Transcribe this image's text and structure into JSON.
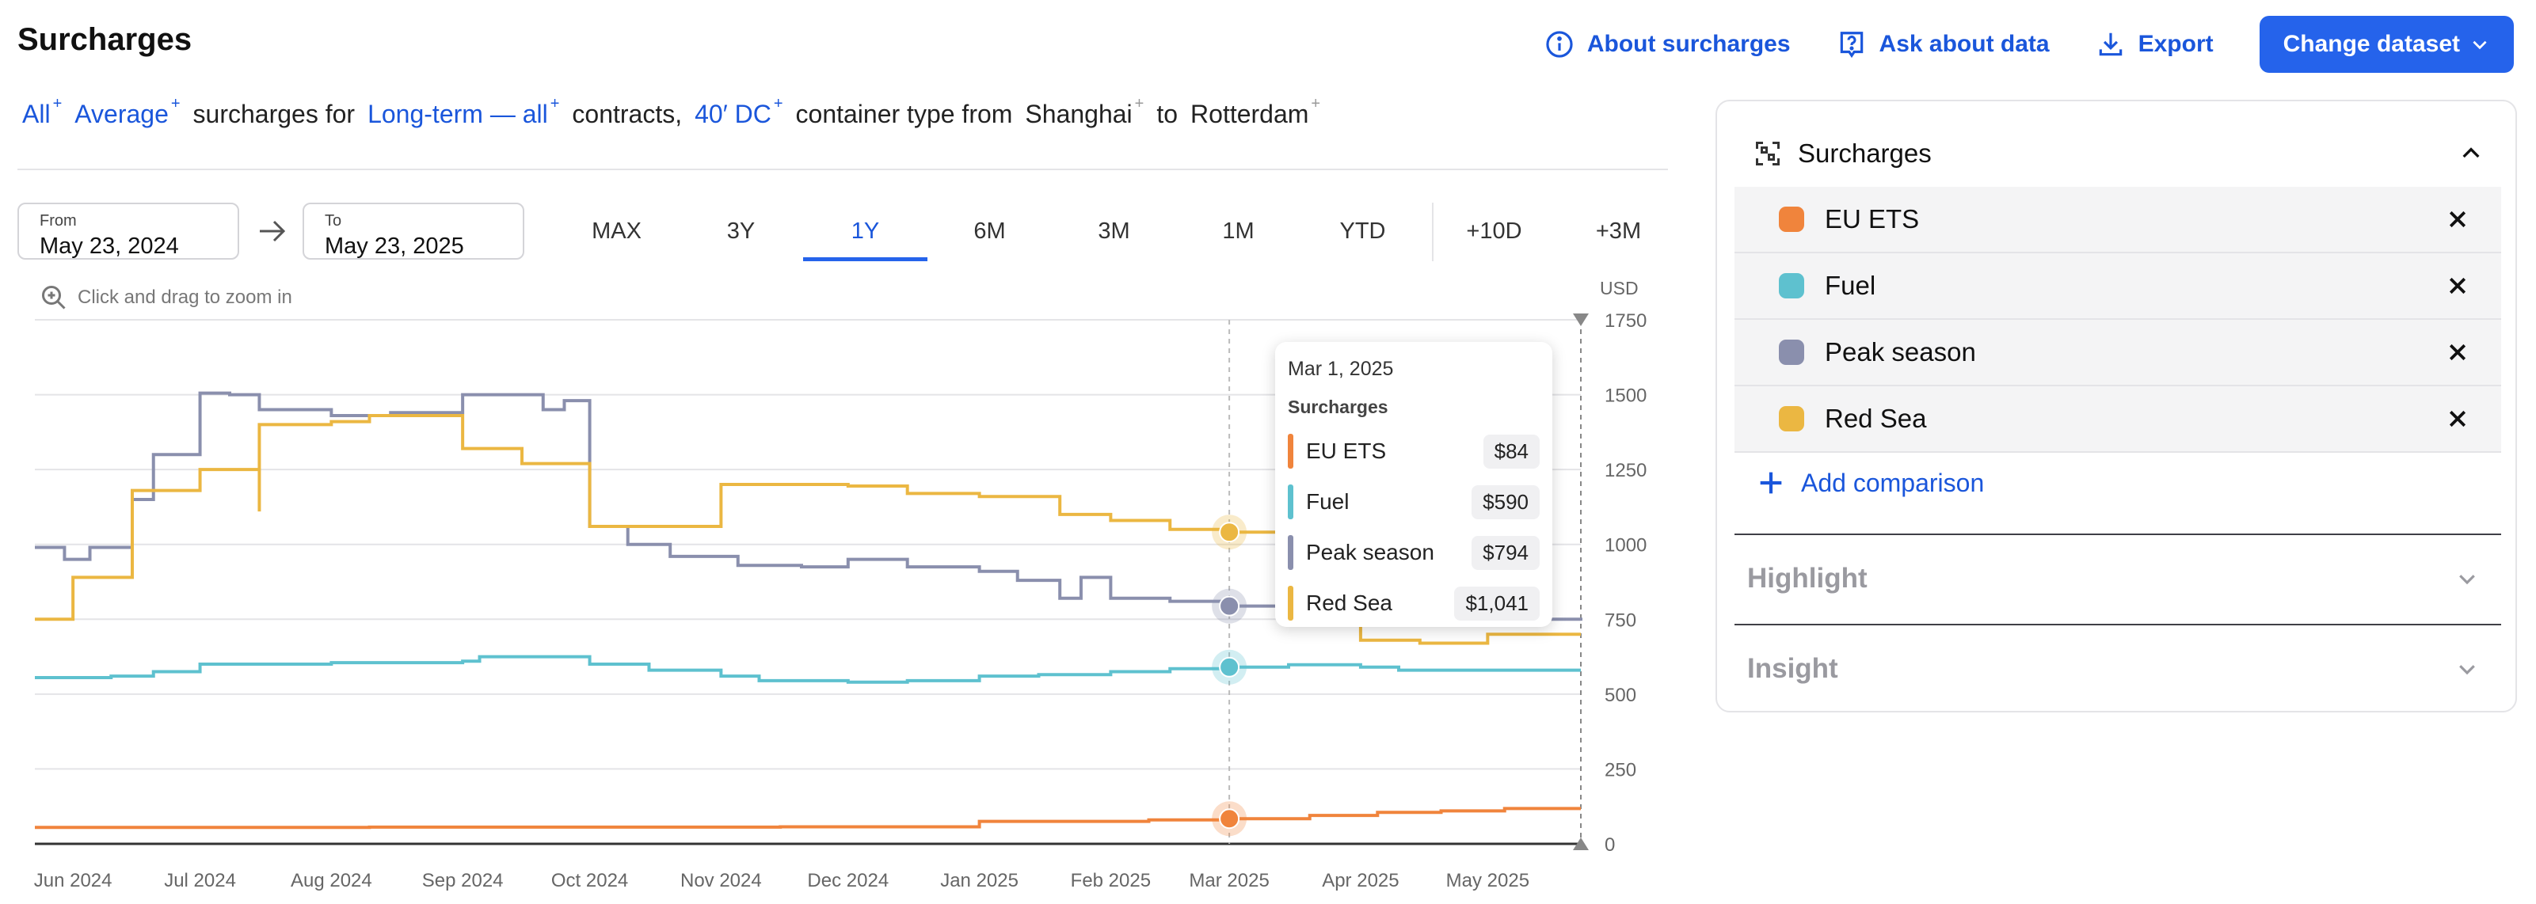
{
  "header": {
    "title": "Surcharges",
    "about_label": "About surcharges",
    "ask_label": "Ask about data",
    "export_label": "Export",
    "change_dataset_label": "Change dataset"
  },
  "query": {
    "all": "All",
    "average": "Average",
    "t1": "surcharges for",
    "contract": "Long-term — all",
    "t2": "contracts,",
    "container": "40′ DC",
    "t3": "container type from",
    "origin": "Shanghai",
    "t4": "to",
    "destination": "Rotterdam",
    "sup_mark": "+"
  },
  "date_range": {
    "from_label": "From",
    "from_value": "May 23, 2024",
    "to_label": "To",
    "to_value": "May 23, 2025"
  },
  "ranges": [
    "MAX",
    "3Y",
    "1Y",
    "6M",
    "3M",
    "1M",
    "YTD"
  ],
  "active_range": "1Y",
  "ranges_future": [
    "+10D",
    "+3M"
  ],
  "zoom_hint": "Click and drag to zoom in",
  "colors": {
    "eu_ets": "#f0843c",
    "fuel": "#5ec1cf",
    "peak": "#8a8fad",
    "red_sea": "#ebb742",
    "accent": "#2563eb"
  },
  "tooltip": {
    "date": "Mar 1, 2025",
    "heading": "Surcharges",
    "rows": [
      {
        "name": "EU ETS",
        "value": "$84"
      },
      {
        "name": "Fuel",
        "value": "$590"
      },
      {
        "name": "Peak season",
        "value": "$794"
      },
      {
        "name": "Red Sea",
        "value": "$1,041"
      }
    ]
  },
  "panel": {
    "title": "Surcharges",
    "items": [
      "EU ETS",
      "Fuel",
      "Peak season",
      "Red Sea"
    ],
    "add_label": "Add comparison",
    "highlight_label": "Highlight",
    "insight_label": "Insight"
  },
  "chart_data": {
    "type": "line",
    "step": true,
    "ylabel": "USD",
    "ylim": [
      0,
      1750
    ],
    "yticks": [
      0,
      250,
      500,
      750,
      1000,
      1250,
      1500,
      1750
    ],
    "xlim": [
      "2024-05-23",
      "2025-05-23"
    ],
    "xticks": [
      {
        "label": "Jun 2024",
        "date": "2024-06-01"
      },
      {
        "label": "Jul 2024",
        "date": "2024-07-01"
      },
      {
        "label": "Aug 2024",
        "date": "2024-08-01"
      },
      {
        "label": "Sep 2024",
        "date": "2024-09-01"
      },
      {
        "label": "Oct 2024",
        "date": "2024-10-01"
      },
      {
        "label": "Nov 2024",
        "date": "2024-11-01"
      },
      {
        "label": "Dec 2024",
        "date": "2024-12-01"
      },
      {
        "label": "Jan 2025",
        "date": "2025-01-01"
      },
      {
        "label": "Feb 2025",
        "date": "2025-02-01"
      },
      {
        "label": "Mar 2025",
        "date": "2025-03-01"
      },
      {
        "label": "Apr 2025",
        "date": "2025-04-01"
      },
      {
        "label": "May 2025",
        "date": "2025-05-01"
      }
    ],
    "grid": true,
    "cursor_date": "2025-03-01",
    "series": [
      {
        "name": "EU ETS",
        "color": "#f0843c",
        "points": [
          [
            "2024-05-23",
            55
          ],
          [
            "2024-08-10",
            56
          ],
          [
            "2024-11-15",
            57
          ],
          [
            "2025-01-01",
            75
          ],
          [
            "2025-02-10",
            80
          ],
          [
            "2025-03-01",
            84
          ],
          [
            "2025-03-20",
            95
          ],
          [
            "2025-04-05",
            105
          ],
          [
            "2025-04-20",
            110
          ],
          [
            "2025-05-05",
            118
          ],
          [
            "2025-05-23",
            118
          ]
        ]
      },
      {
        "name": "Fuel",
        "color": "#5ec1cf",
        "points": [
          [
            "2024-05-23",
            555
          ],
          [
            "2024-06-10",
            560
          ],
          [
            "2024-06-20",
            575
          ],
          [
            "2024-07-01",
            600
          ],
          [
            "2024-08-01",
            605
          ],
          [
            "2024-09-01",
            610
          ],
          [
            "2024-09-05",
            625
          ],
          [
            "2024-10-01",
            600
          ],
          [
            "2024-10-15",
            580
          ],
          [
            "2024-11-01",
            560
          ],
          [
            "2024-11-10",
            545
          ],
          [
            "2024-12-01",
            540
          ],
          [
            "2024-12-15",
            545
          ],
          [
            "2025-01-01",
            560
          ],
          [
            "2025-01-15",
            565
          ],
          [
            "2025-02-01",
            575
          ],
          [
            "2025-02-15",
            585
          ],
          [
            "2025-03-01",
            590
          ],
          [
            "2025-03-15",
            598
          ],
          [
            "2025-04-01",
            590
          ],
          [
            "2025-04-10",
            580
          ],
          [
            "2025-05-23",
            580
          ]
        ]
      },
      {
        "name": "Peak season",
        "color": "#8a8fad",
        "points": [
          [
            "2024-05-23",
            990
          ],
          [
            "2024-05-30",
            950
          ],
          [
            "2024-06-05",
            990
          ],
          [
            "2024-06-15",
            1150
          ],
          [
            "2024-06-20",
            1300
          ],
          [
            "2024-07-01",
            1505
          ],
          [
            "2024-07-08",
            1500
          ],
          [
            "2024-07-15",
            1450
          ],
          [
            "2024-08-01",
            1430
          ],
          [
            "2024-08-15",
            1440
          ],
          [
            "2024-09-01",
            1500
          ],
          [
            "2024-09-20",
            1450
          ],
          [
            "2024-09-25",
            1480
          ],
          [
            "2024-10-01",
            1060
          ],
          [
            "2024-10-10",
            1000
          ],
          [
            "2024-10-20",
            960
          ],
          [
            "2024-11-05",
            930
          ],
          [
            "2024-11-20",
            925
          ],
          [
            "2024-12-01",
            950
          ],
          [
            "2024-12-15",
            925
          ],
          [
            "2025-01-01",
            910
          ],
          [
            "2025-01-10",
            880
          ],
          [
            "2025-01-20",
            820
          ],
          [
            "2025-01-25",
            890
          ],
          [
            "2025-02-01",
            820
          ],
          [
            "2025-02-15",
            810
          ],
          [
            "2025-03-01",
            794
          ],
          [
            "2025-03-20",
            780
          ],
          [
            "2025-04-15",
            770
          ],
          [
            "2025-05-05",
            750
          ],
          [
            "2025-05-23",
            745
          ]
        ]
      },
      {
        "name": "Red Sea",
        "color": "#ebb742",
        "points": [
          [
            "2024-05-23",
            750
          ],
          [
            "2024-06-01",
            750
          ],
          [
            "2024-06-01",
            890
          ],
          [
            "2024-06-15",
            1180
          ],
          [
            "2024-07-01",
            1250
          ],
          [
            "2024-07-15",
            1110
          ],
          [
            "2024-07-15",
            1400
          ],
          [
            "2024-08-01",
            1410
          ],
          [
            "2024-08-10",
            1430
          ],
          [
            "2024-09-01",
            1320
          ],
          [
            "2024-09-15",
            1270
          ],
          [
            "2024-10-01",
            1060
          ],
          [
            "2024-10-20",
            1060
          ],
          [
            "2024-11-01",
            1200
          ],
          [
            "2024-12-01",
            1195
          ],
          [
            "2024-12-15",
            1170
          ],
          [
            "2025-01-01",
            1160
          ],
          [
            "2025-01-20",
            1100
          ],
          [
            "2025-02-01",
            1080
          ],
          [
            "2025-02-15",
            1050
          ],
          [
            "2025-03-01",
            1041
          ],
          [
            "2025-03-20",
            980
          ],
          [
            "2025-04-01",
            680
          ],
          [
            "2025-04-15",
            670
          ],
          [
            "2025-05-01",
            700
          ],
          [
            "2025-05-23",
            700
          ]
        ]
      }
    ]
  }
}
